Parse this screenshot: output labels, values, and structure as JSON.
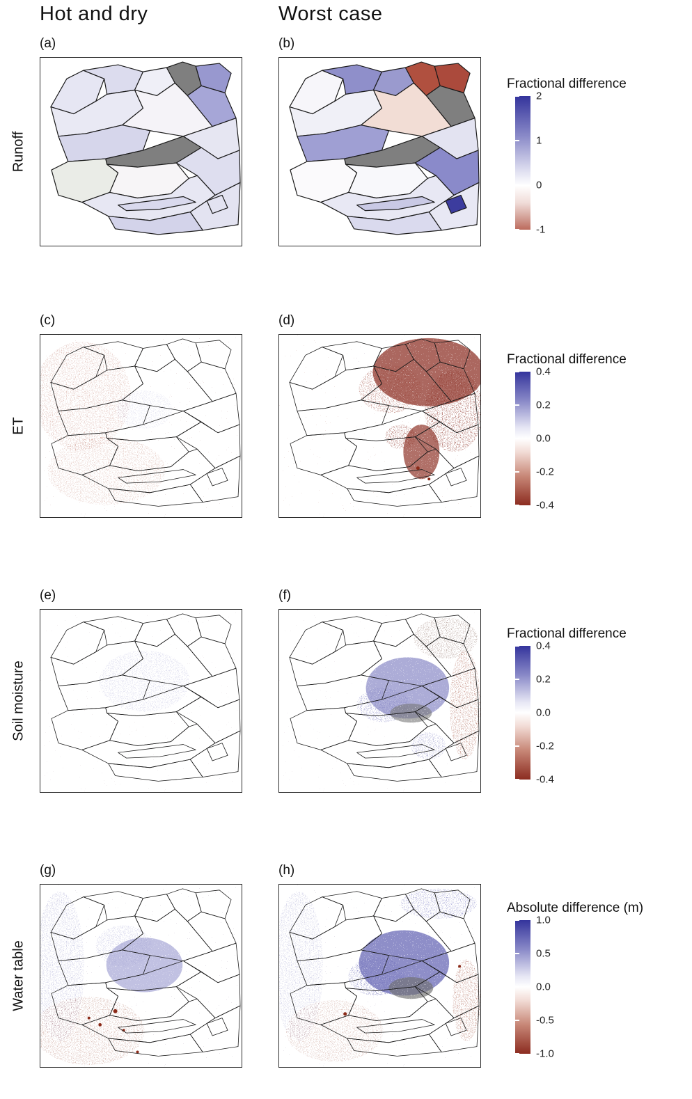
{
  "figure": {
    "column_headers": [
      {
        "label": "Hot and dry"
      },
      {
        "label": "Worst case"
      }
    ],
    "row_labels": [
      "Runoff",
      "ET",
      "Soil moisture",
      "Water table"
    ]
  },
  "legends": [
    {
      "title": "Fractional difference",
      "ticks": [
        "2",
        "1",
        "0",
        "-1"
      ],
      "gradient_stops": [
        [
          "#34349c",
          0
        ],
        [
          "#8a8ac8",
          30
        ],
        [
          "#dcdcef",
          55
        ],
        [
          "#ffffff",
          67
        ],
        [
          "#f0dcd8",
          80
        ],
        [
          "#d09a90",
          92
        ],
        [
          "#bc6a5c",
          100
        ]
      ]
    },
    {
      "title": "Fractional difference",
      "ticks": [
        "0.4",
        "0.2",
        "0.0",
        "-0.2",
        "-0.4"
      ],
      "gradient_stops": [
        [
          "#34349c",
          0
        ],
        [
          "#8a8ac8",
          22
        ],
        [
          "#e6e6f4",
          42
        ],
        [
          "#ffffff",
          50
        ],
        [
          "#f2dcd6",
          60
        ],
        [
          "#c88878",
          78
        ],
        [
          "#8c2c20",
          100
        ]
      ]
    },
    {
      "title": "Fractional difference",
      "ticks": [
        "0.4",
        "0.2",
        "0.0",
        "-0.2",
        "-0.4"
      ],
      "gradient_stops": [
        [
          "#34349c",
          0
        ],
        [
          "#8a8ac8",
          22
        ],
        [
          "#e6e6f4",
          42
        ],
        [
          "#ffffff",
          50
        ],
        [
          "#f2dcd6",
          60
        ],
        [
          "#c88878",
          78
        ],
        [
          "#8c2c20",
          100
        ]
      ]
    },
    {
      "title": "Absolute difference (m)",
      "ticks": [
        "1.0",
        "0.5",
        "0.0",
        "-0.5",
        "-1.0"
      ],
      "gradient_stops": [
        [
          "#34349c",
          0
        ],
        [
          "#8a8ac8",
          22
        ],
        [
          "#e6e6f4",
          42
        ],
        [
          "#ffffff",
          50
        ],
        [
          "#f2dcd6",
          60
        ],
        [
          "#c88878",
          78
        ],
        [
          "#8c2c20",
          100
        ]
      ]
    }
  ],
  "chart_data": {
    "type": "heatmap",
    "description": "Eight-panel map figure comparing two climate scenarios (Hot and dry vs Worst case) for four hydrologic variables over the same set of sub-basins. Panels a-b are basin-average choropleths of fractional runoff difference; panels c-h are pixel-level difference maps with diverging blue-white-red colormaps.",
    "columns": [
      "Hot and dry",
      "Worst case"
    ],
    "rows": [
      {
        "variable": "Runoff",
        "legend_title": "Fractional difference",
        "colorbar_ticks": [
          2,
          1,
          0,
          -1
        ],
        "colorbar_range": [
          -1,
          2
        ],
        "panels": [
          "(a)",
          "(b)"
        ]
      },
      {
        "variable": "ET",
        "legend_title": "Fractional difference",
        "colorbar_ticks": [
          0.4,
          0.2,
          0.0,
          -0.2,
          -0.4
        ],
        "colorbar_range": [
          -0.4,
          0.4
        ],
        "panels": [
          "(c)",
          "(d)"
        ]
      },
      {
        "variable": "Soil moisture",
        "legend_title": "Fractional difference",
        "colorbar_ticks": [
          0.4,
          0.2,
          0.0,
          -0.2,
          -0.4
        ],
        "colorbar_range": [
          -0.4,
          0.4
        ],
        "panels": [
          "(e)",
          "(f)"
        ]
      },
      {
        "variable": "Water table",
        "legend_title": "Absolute difference (m)",
        "colorbar_ticks": [
          1.0,
          0.5,
          0.0,
          -0.5,
          -1.0
        ],
        "colorbar_range": [
          -1.0,
          1.0
        ],
        "panels": [
          "(g)",
          "(h)"
        ]
      }
    ],
    "panels": {
      "a": {
        "label": "(a)",
        "row": "Runoff",
        "column": "Hot and dry",
        "style": "choropleth",
        "summary": "Mostly pale blue-purple basins (small runoff increase), stronger blue in northeast, two basins masked dark gray",
        "basin_fills": [
          "#e6e6f3",
          "#dcdcee",
          "#efeff7",
          "#7f7f7f",
          "#9898cf",
          "#a6a6d7",
          "#e9e9f4",
          "#f5f3f8",
          "#e6e6f2",
          "#d6d6eb",
          "#7f7f7f",
          "#dedeef",
          "#eaece7",
          "#f7f5f7",
          "#e7e7f3",
          "#d9d9ed",
          "#e3e3f1",
          "#d3d3ea",
          "#e3e3f1"
        ]
      },
      "b": {
        "label": "(b)",
        "row": "Runoff",
        "column": "Worst case",
        "style": "choropleth",
        "summary": "Northeast basins strongly negative (brick red), several blue basins across the north and center, gray masked basins, one dark blue basin in the southeast, pale pink central basin",
        "basin_fills": [
          "#f7f6fa",
          "#8f8fca",
          "#9a9ace",
          "#b0503f",
          "#ab4a3c",
          "#7f7f7f",
          "#f0f0f7",
          "#f2ddd5",
          "#e3e3f1",
          "#9f9fd3",
          "#7f7f7f",
          "#8a8aca",
          "#fbfafc",
          "#f8f8fb",
          "#e8e8f4",
          "#c9c9e5",
          "#e8e8f4",
          "#dadaee",
          "#3c3c9e"
        ]
      },
      "c": {
        "label": "(c)",
        "row": "ET",
        "column": "Hot and dry",
        "style": "pixel",
        "summary": "Faint reddish speckle overall, slightly denser toward the west and south (small ET decrease)"
      },
      "d": {
        "label": "(d)",
        "row": "ET",
        "column": "Worst case",
        "style": "pixel",
        "summary": "Strong dark red patches in the northeast and center-east (large ET decrease), scattered blue speckle along the top"
      },
      "e": {
        "label": "(e)",
        "row": "Soil moisture",
        "column": "Hot and dry",
        "style": "pixel",
        "summary": "Very faint blue tint in center basins and faint red speckle in the south"
      },
      "f": {
        "label": "(f)",
        "row": "Soil moisture",
        "column": "Worst case",
        "style": "pixel",
        "summary": "Blue patches in the center-east (wetter soil), gray masked patch, red speckle along the eastern edge"
      },
      "g": {
        "label": "(g)",
        "row": "Water table",
        "column": "Hot and dry",
        "style": "pixel",
        "summary": "Mottled pink/blue speckle throughout, blue patch in the central basin, scattered dark red dots in the southwest"
      },
      "h": {
        "label": "(h)",
        "row": "Water table",
        "column": "Worst case",
        "style": "pixel",
        "summary": "Strong blue patches in the central-east basins (water table rise), gray masked blob, red speckle on the eastern edge"
      }
    }
  }
}
